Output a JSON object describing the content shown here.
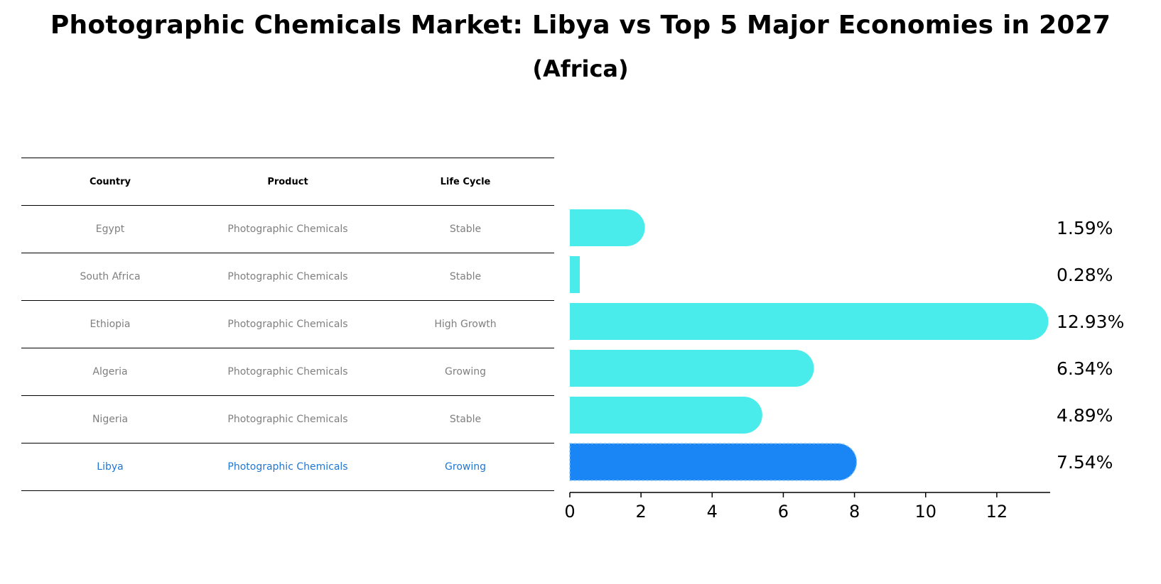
{
  "title": "Photographic Chemicals Market: Libya vs Top 5 Major Economies in 2027",
  "subtitle": "(Africa)",
  "table": {
    "headers": [
      "Country",
      "Product",
      "Life Cycle"
    ],
    "rows": [
      [
        "Egypt",
        "Photographic Chemicals",
        "Stable"
      ],
      [
        "South Africa",
        "Photographic Chemicals",
        "Stable"
      ],
      [
        "Ethiopia",
        "Photographic Chemicals",
        "High Growth"
      ],
      [
        "Algeria",
        "Photographic Chemicals",
        "Growing"
      ],
      [
        "Nigeria",
        "Photographic Chemicals",
        "Stable"
      ],
      [
        "Libya",
        "Photographic Chemicals",
        "Growing"
      ]
    ]
  },
  "chart_data": {
    "type": "bar",
    "orientation": "horizontal",
    "categories": [
      "Egypt",
      "South Africa",
      "Ethiopia",
      "Algeria",
      "Nigeria",
      "Libya"
    ],
    "values": [
      1.59,
      0.28,
      12.93,
      6.34,
      4.89,
      7.54
    ],
    "value_labels": [
      "1.59%",
      "0.28%",
      "12.93%",
      "6.34%",
      "4.89%",
      "7.54%"
    ],
    "highlight": "Libya",
    "xlim": [
      0,
      13.5
    ],
    "xticks": [
      0,
      2,
      4,
      6,
      8,
      10,
      12
    ],
    "xtick_labels": [
      "0",
      "2",
      "4",
      "6",
      "8",
      "10",
      "12"
    ],
    "grid": false,
    "colors": {
      "default": "#4aeceb",
      "highlight": "#1a86f5",
      "highlight_text": "#1f77d4"
    }
  }
}
